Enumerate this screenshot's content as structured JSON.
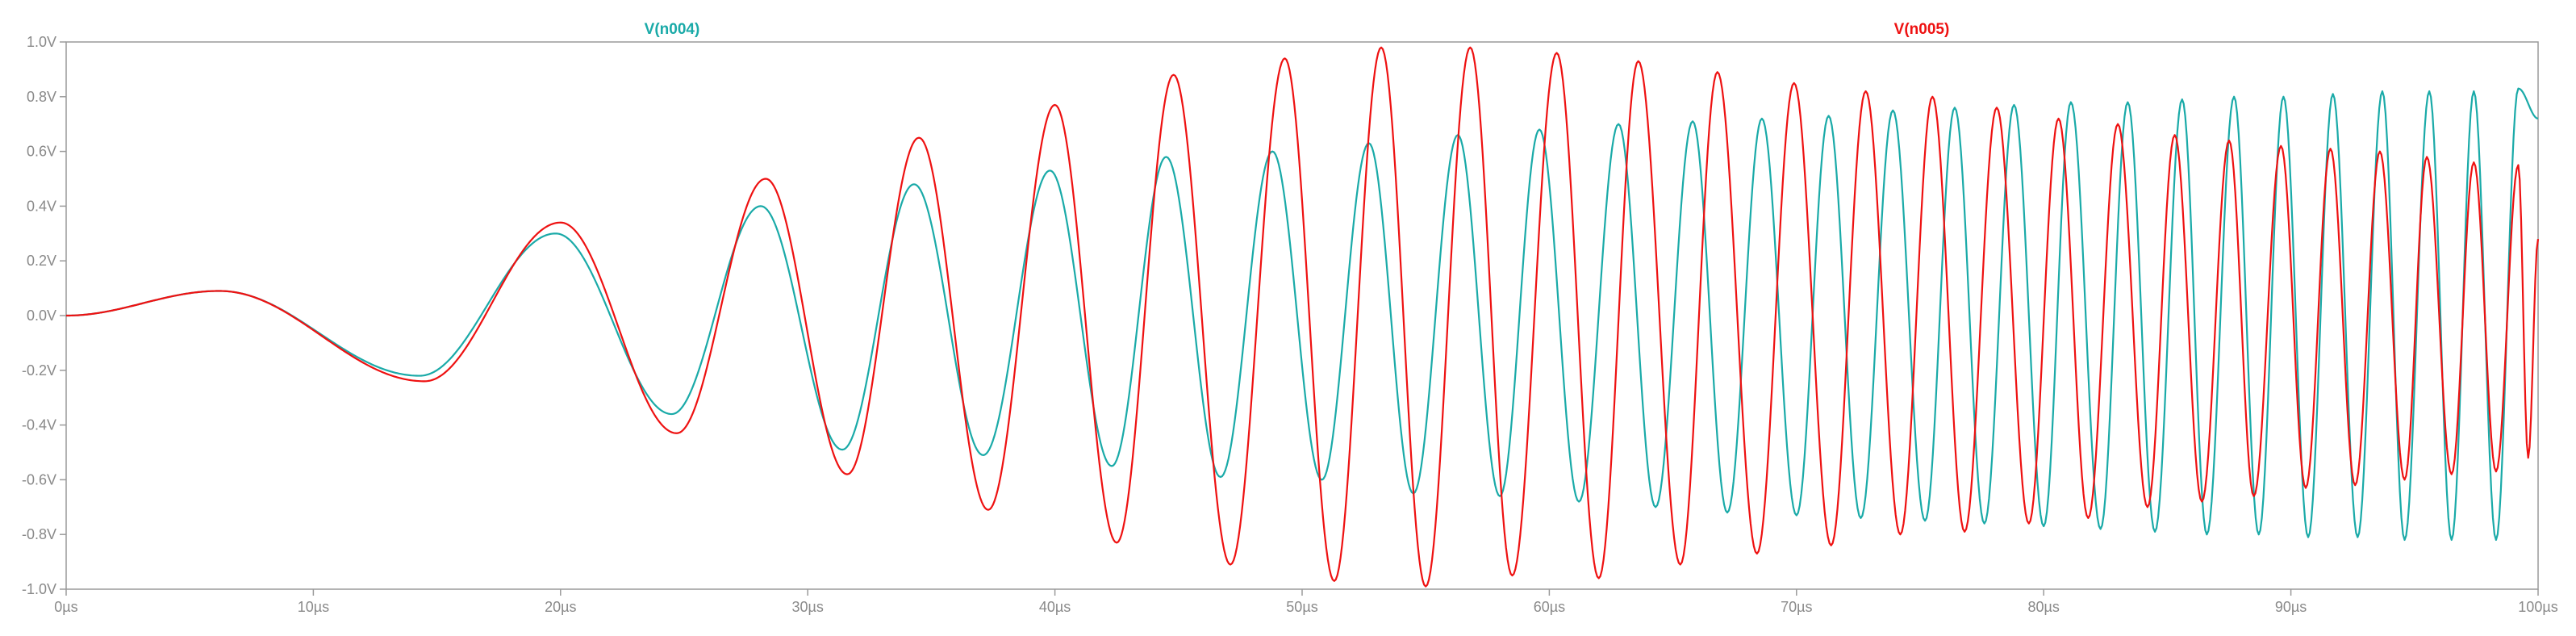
{
  "chart_data": {
    "type": "line",
    "xlabel": "",
    "ylabel": "",
    "xlim": [
      0,
      100
    ],
    "ylim": [
      -1.0,
      1.0
    ],
    "x_unit": "µs",
    "y_unit": "V",
    "grid": false,
    "x_ticks": [
      {
        "value": 0,
        "label": "0µs"
      },
      {
        "value": 10,
        "label": "10µs"
      },
      {
        "value": 20,
        "label": "20µs"
      },
      {
        "value": 30,
        "label": "30µs"
      },
      {
        "value": 40,
        "label": "40µs"
      },
      {
        "value": 50,
        "label": "50µs"
      },
      {
        "value": 60,
        "label": "60µs"
      },
      {
        "value": 70,
        "label": "70µs"
      },
      {
        "value": 80,
        "label": "80µs"
      },
      {
        "value": 90,
        "label": "90µs"
      },
      {
        "value": 100,
        "label": "100µs"
      }
    ],
    "y_ticks": [
      {
        "value": 1.0,
        "label": "1.0V"
      },
      {
        "value": 0.8,
        "label": "0.8V"
      },
      {
        "value": 0.6,
        "label": "0.6V"
      },
      {
        "value": 0.4,
        "label": "0.4V"
      },
      {
        "value": 0.2,
        "label": "0.2V"
      },
      {
        "value": 0.0,
        "label": "0.0V"
      },
      {
        "value": -0.2,
        "label": "-0.2V"
      },
      {
        "value": -0.4,
        "label": "-0.4V"
      },
      {
        "value": -0.6,
        "label": "-0.6V"
      },
      {
        "value": -0.8,
        "label": "-0.8V"
      },
      {
        "value": -1.0,
        "label": "-1.0V"
      }
    ],
    "series": [
      {
        "name": "V(n004)",
        "color": "#1aaaa8",
        "legend_position": "top-left",
        "points": [
          [
            0,
            0.0
          ],
          [
            6.2,
            0.09
          ],
          [
            14.3,
            -0.22
          ],
          [
            19.8,
            0.3
          ],
          [
            24.5,
            -0.36
          ],
          [
            28.1,
            0.4
          ],
          [
            31.4,
            -0.49
          ],
          [
            34.3,
            0.48
          ],
          [
            37.1,
            -0.51
          ],
          [
            39.8,
            0.53
          ],
          [
            42.3,
            -0.55
          ],
          [
            44.5,
            0.58
          ],
          [
            46.7,
            -0.59
          ],
          [
            48.8,
            0.6
          ],
          [
            50.8,
            -0.6
          ],
          [
            52.7,
            0.63
          ],
          [
            54.5,
            -0.65
          ],
          [
            56.3,
            0.66
          ],
          [
            58.0,
            -0.66
          ],
          [
            59.6,
            0.68
          ],
          [
            61.2,
            -0.68
          ],
          [
            62.8,
            0.7
          ],
          [
            64.3,
            -0.7
          ],
          [
            65.8,
            0.71
          ],
          [
            67.2,
            -0.72
          ],
          [
            68.6,
            0.72
          ],
          [
            70.0,
            -0.73
          ],
          [
            71.3,
            0.73
          ],
          [
            72.6,
            -0.74
          ],
          [
            73.9,
            0.75
          ],
          [
            75.2,
            -0.75
          ],
          [
            76.4,
            0.76
          ],
          [
            77.6,
            -0.76
          ],
          [
            78.8,
            0.77
          ],
          [
            80.0,
            -0.77
          ],
          [
            81.1,
            0.78
          ],
          [
            82.3,
            -0.78
          ],
          [
            83.4,
            0.78
          ],
          [
            84.5,
            -0.79
          ],
          [
            85.6,
            0.79
          ],
          [
            86.6,
            -0.8
          ],
          [
            87.7,
            0.8
          ],
          [
            88.7,
            -0.8
          ],
          [
            89.7,
            0.8
          ],
          [
            90.7,
            -0.81
          ],
          [
            91.7,
            0.81
          ],
          [
            92.7,
            -0.81
          ],
          [
            93.7,
            0.82
          ],
          [
            94.6,
            -0.82
          ],
          [
            95.6,
            0.82
          ],
          [
            96.5,
            -0.82
          ],
          [
            97.4,
            0.82
          ],
          [
            98.3,
            -0.82
          ],
          [
            99.2,
            0.83
          ],
          [
            100,
            0.72
          ]
        ]
      },
      {
        "name": "V(n005)",
        "color": "#ee1111",
        "legend_position": "top-right",
        "points": [
          [
            0,
            0.0
          ],
          [
            6.2,
            0.09
          ],
          [
            14.5,
            -0.24
          ],
          [
            20.0,
            0.34
          ],
          [
            24.7,
            -0.43
          ],
          [
            28.3,
            0.5
          ],
          [
            31.6,
            -0.58
          ],
          [
            34.5,
            0.65
          ],
          [
            37.3,
            -0.71
          ],
          [
            40.0,
            0.77
          ],
          [
            42.5,
            -0.83
          ],
          [
            44.8,
            0.88
          ],
          [
            47.1,
            -0.91
          ],
          [
            49.3,
            0.94
          ],
          [
            51.3,
            -0.97
          ],
          [
            53.2,
            0.98
          ],
          [
            55.0,
            -0.99
          ],
          [
            56.8,
            0.98
          ],
          [
            58.5,
            -0.95
          ],
          [
            60.3,
            0.96
          ],
          [
            62.0,
            -0.96
          ],
          [
            63.6,
            0.93
          ],
          [
            65.3,
            -0.91
          ],
          [
            66.8,
            0.89
          ],
          [
            68.4,
            -0.87
          ],
          [
            69.9,
            0.85
          ],
          [
            71.4,
            -0.84
          ],
          [
            72.8,
            0.82
          ],
          [
            74.2,
            -0.8
          ],
          [
            75.5,
            0.8
          ],
          [
            76.8,
            -0.79
          ],
          [
            78.1,
            0.76
          ],
          [
            79.4,
            -0.76
          ],
          [
            80.6,
            0.72
          ],
          [
            81.8,
            -0.74
          ],
          [
            83.0,
            0.7
          ],
          [
            84.2,
            -0.7
          ],
          [
            85.3,
            0.66
          ],
          [
            86.4,
            -0.68
          ],
          [
            87.5,
            0.64
          ],
          [
            88.5,
            -0.66
          ],
          [
            89.6,
            0.62
          ],
          [
            90.6,
            -0.63
          ],
          [
            91.6,
            0.61
          ],
          [
            92.6,
            -0.62
          ],
          [
            93.6,
            0.6
          ],
          [
            94.6,
            -0.6
          ],
          [
            95.5,
            0.58
          ],
          [
            96.5,
            -0.58
          ],
          [
            97.4,
            0.56
          ],
          [
            98.3,
            -0.57
          ],
          [
            99.2,
            0.55
          ],
          [
            99.6,
            -0.52
          ],
          [
            100,
            0.28
          ]
        ]
      }
    ]
  }
}
